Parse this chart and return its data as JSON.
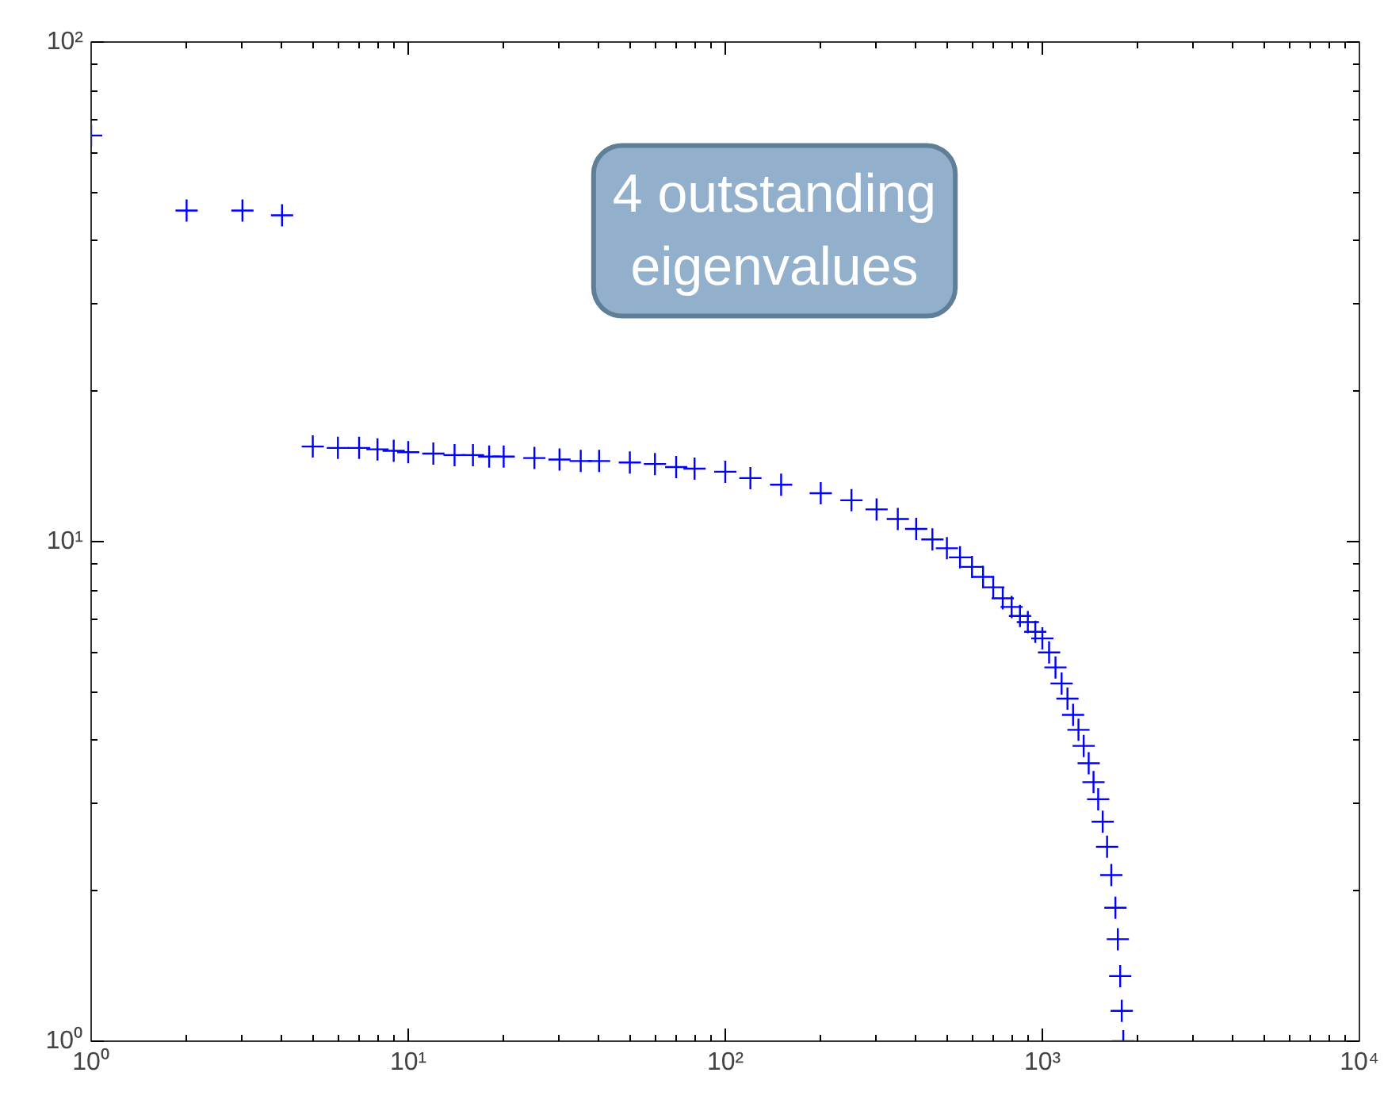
{
  "chart_data": {
    "type": "scatter",
    "log": "xy",
    "marker": "cross",
    "xlim": [
      1,
      10000
    ],
    "ylim": [
      1,
      100
    ],
    "xticks": [
      {
        "value": 1,
        "label": "10⁰"
      },
      {
        "value": 10,
        "label": "10¹"
      },
      {
        "value": 100,
        "label": "10²"
      },
      {
        "value": 1000,
        "label": "10³"
      },
      {
        "value": 10000,
        "label": "10⁴"
      }
    ],
    "yticks": [
      {
        "value": 1,
        "label": "10⁰"
      },
      {
        "value": 10,
        "label": "10¹"
      },
      {
        "value": 100,
        "label": "10²"
      }
    ],
    "annotations": [
      "4 outstanding eigenvalues"
    ],
    "series": [
      {
        "color": "#0000ff",
        "x": [
          1,
          2,
          3,
          4,
          5,
          6,
          7,
          8,
          9,
          10,
          12,
          14,
          16,
          18,
          20,
          25,
          30,
          35,
          40,
          50,
          60,
          70,
          80,
          100,
          120,
          150,
          200,
          250,
          300,
          350,
          400,
          450,
          500,
          550,
          600,
          650,
          700,
          750,
          800,
          850,
          900,
          950,
          1000,
          1050,
          1100,
          1150,
          1200,
          1250,
          1300,
          1350,
          1400,
          1450,
          1500,
          1550,
          1600,
          1650,
          1700,
          1730,
          1760,
          1780,
          1800
        ],
        "values": [
          65,
          46,
          46,
          45,
          15.5,
          15.4,
          15.4,
          15.3,
          15.2,
          15.1,
          15.0,
          14.9,
          14.9,
          14.8,
          14.8,
          14.7,
          14.6,
          14.5,
          14.5,
          14.4,
          14.3,
          14.1,
          14.0,
          13.8,
          13.4,
          13.0,
          12.5,
          12.1,
          11.6,
          11.1,
          10.6,
          10.1,
          9.7,
          9.3,
          8.9,
          8.5,
          8.1,
          7.7,
          7.4,
          7.1,
          6.9,
          6.6,
          6.4,
          6.0,
          5.6,
          5.2,
          4.85,
          4.5,
          4.2,
          3.9,
          3.6,
          3.3,
          3.05,
          2.75,
          2.45,
          2.15,
          1.85,
          1.6,
          1.35,
          1.15,
          1.0
        ]
      }
    ]
  }
}
